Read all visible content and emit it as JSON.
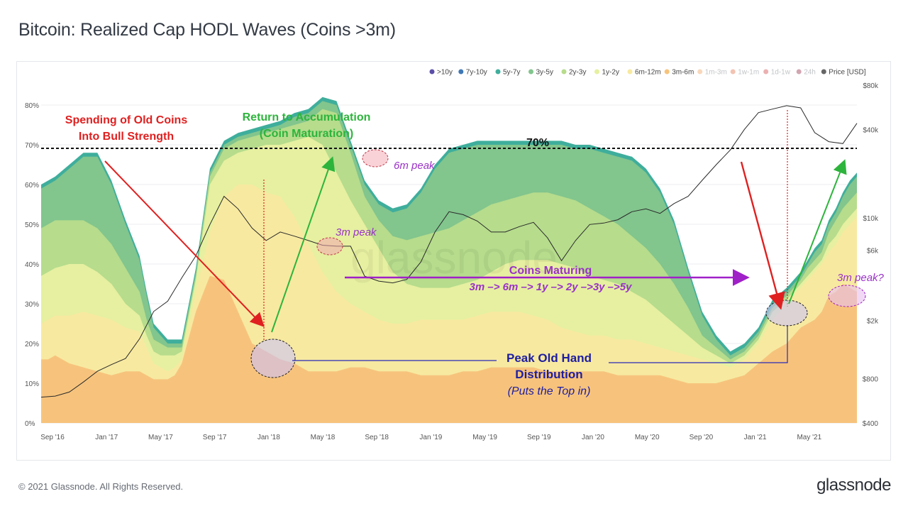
{
  "title": "Bitcoin: Realized Cap HODL Waves (Coins >3m)",
  "footer": {
    "copyright": "© 2021 Glassnode. All Rights Reserved.",
    "logo": "glassnode"
  },
  "watermark": "glassnode",
  "chart_data": {
    "type": "area",
    "title": "Bitcoin: Realized Cap HODL Waves (Coins >3m)",
    "x_ticks": [
      "Sep '16",
      "Jan '17",
      "May '17",
      "Sep '17",
      "Jan '18",
      "May '18",
      "Sep '18",
      "Jan '19",
      "May '19",
      "Sep '19",
      "Jan '20",
      "May '20",
      "Sep '20",
      "Jan '21",
      "May '21"
    ],
    "y_left_ticks": [
      "0%",
      "10%",
      "20%",
      "30%",
      "40%",
      "50%",
      "60%",
      "70%",
      "80%"
    ],
    "y_left_range": [
      0,
      85
    ],
    "y_right_ticks": [
      "$400",
      "$800",
      "$2k",
      "$6k",
      "$10k",
      "$40k",
      "$80k"
    ],
    "y_right_scale": "log",
    "y_right_range": [
      400,
      80000
    ],
    "legend_position": "top-right",
    "legend": [
      {
        "label": ">10y",
        "color": "#5b4fa8",
        "dimmed": false
      },
      {
        "label": "7y-10y",
        "color": "#3f78b5",
        "dimmed": false
      },
      {
        "label": "5y-7y",
        "color": "#3fae9c",
        "dimmed": false
      },
      {
        "label": "3y-5y",
        "color": "#82c58d",
        "dimmed": false
      },
      {
        "label": "2y-3y",
        "color": "#b6dc8c",
        "dimmed": false
      },
      {
        "label": "1y-2y",
        "color": "#e6f0a0",
        "dimmed": false
      },
      {
        "label": "6m-12m",
        "color": "#f7e9a0",
        "dimmed": false
      },
      {
        "label": "3m-6m",
        "color": "#f7c37c",
        "dimmed": false
      },
      {
        "label": "1m-3m",
        "color": "#f09a55",
        "dimmed": true
      },
      {
        "label": "1w-1m",
        "color": "#e26a3e",
        "dimmed": true
      },
      {
        "label": "1d-1w",
        "color": "#cc3b3b",
        "dimmed": true
      },
      {
        "label": "24h",
        "color": "#8c1d3c",
        "dimmed": true
      },
      {
        "label": "Price [USD]",
        "color": "#666666",
        "dimmed": false
      }
    ],
    "x": [
      0,
      0.5,
      1,
      2,
      3,
      4,
      5,
      6,
      7,
      7.5,
      8,
      8.5,
      9,
      9.5,
      10,
      11,
      12,
      13,
      14,
      15,
      16,
      17,
      18,
      19,
      20,
      21,
      22,
      23,
      24,
      25,
      26,
      27,
      28,
      29,
      30,
      31,
      32,
      33,
      34,
      35,
      36,
      37,
      38,
      39,
      40,
      41,
      42,
      43,
      44,
      45,
      46,
      47,
      48,
      49,
      50,
      51,
      52,
      53,
      54,
      54.5,
      55,
      55.5,
      56,
      56.5,
      57,
      57.5,
      58
    ],
    "series_order_bottom_to_top": [
      "3m-6m",
      "6m-12m",
      "1y-2y",
      "2y-3y",
      "3y-5y",
      "5y-7y"
    ],
    "stack_boundaries_pct": {
      "3m-6m": [
        16,
        16,
        17,
        15,
        14,
        13,
        12,
        13,
        13,
        12,
        11,
        11,
        11,
        12,
        15,
        28,
        37,
        36,
        28,
        20,
        18,
        16,
        15,
        13,
        13,
        13,
        14,
        14,
        13,
        13,
        13,
        12,
        12,
        12,
        13,
        13,
        14,
        14,
        14,
        14,
        13,
        13,
        13,
        13,
        13,
        12,
        12,
        12,
        12,
        11,
        10,
        10,
        10,
        11,
        12,
        15,
        18,
        20,
        24,
        25,
        26,
        28,
        32,
        33,
        35,
        34,
        33
      ],
      "6m-12m": [
        25,
        26,
        27,
        27,
        28,
        27,
        26,
        24,
        23,
        19,
        15,
        14,
        13,
        14,
        16,
        33,
        48,
        57,
        60,
        60,
        58,
        57,
        52,
        45,
        38,
        33,
        30,
        28,
        26,
        25,
        25,
        26,
        26,
        26,
        26,
        27,
        28,
        28,
        28,
        27,
        26,
        24,
        23,
        22,
        22,
        21,
        21,
        20,
        19,
        18,
        17,
        16,
        15,
        14,
        16,
        20,
        26,
        30,
        34,
        36,
        38,
        40,
        43,
        45,
        48,
        50,
        52
      ],
      "1y-2y": [
        37,
        38,
        39,
        40,
        40,
        38,
        35,
        30,
        27,
        22,
        18,
        17,
        17,
        17,
        18,
        36,
        60,
        66,
        68,
        69,
        70,
        70,
        71,
        72,
        70,
        63,
        56,
        50,
        44,
        38,
        35,
        34,
        34,
        34,
        35,
        36,
        38,
        40,
        41,
        41,
        41,
        40,
        39,
        37,
        36,
        35,
        33,
        31,
        28,
        25,
        22,
        19,
        17,
        15,
        17,
        21,
        28,
        31,
        35,
        37,
        39,
        41,
        45,
        47,
        50,
        52,
        54
      ],
      "2y-3y": [
        49,
        50,
        51,
        51,
        51,
        49,
        45,
        39,
        33,
        26,
        21,
        20,
        19,
        19,
        19,
        37,
        62,
        69,
        71,
        72,
        73,
        74,
        75,
        76,
        79,
        78,
        68,
        57,
        51,
        47,
        46,
        47,
        48,
        49,
        51,
        53,
        55,
        56,
        57,
        58,
        58,
        57,
        56,
        54,
        52,
        50,
        47,
        44,
        40,
        35,
        29,
        22,
        19,
        16,
        18,
        22,
        29,
        32,
        36,
        39,
        41,
        43,
        48,
        51,
        54,
        56,
        58
      ],
      "3y-5y": [
        59,
        60,
        61,
        64,
        67,
        67,
        60,
        50,
        41,
        32,
        24,
        22,
        20,
        20,
        20,
        38,
        63,
        70,
        72,
        73,
        74,
        75,
        77,
        78,
        81,
        80,
        70,
        60,
        55,
        53,
        54,
        58,
        64,
        68,
        69,
        70,
        70,
        70,
        70,
        70,
        70,
        70,
        69,
        69,
        68,
        67,
        66,
        63,
        58,
        50,
        38,
        27,
        21,
        17,
        19,
        23,
        30,
        33,
        37,
        40,
        43,
        45,
        50,
        53,
        57,
        60,
        62
      ],
      "5y-7y": [
        60,
        61,
        62,
        65,
        68,
        68,
        61,
        51,
        42,
        33,
        25,
        23,
        21,
        21,
        21,
        39,
        64,
        71,
        73,
        74,
        75,
        76,
        78,
        79,
        82,
        81,
        71,
        61,
        56,
        54,
        55,
        59,
        65,
        69,
        70,
        71,
        71,
        71,
        71,
        71,
        71,
        71,
        70,
        70,
        69,
        68,
        67,
        64,
        59,
        51,
        39,
        28,
        22,
        18,
        20,
        24,
        31,
        34,
        38,
        41,
        44,
        46,
        51,
        54,
        58,
        61,
        63
      ]
    },
    "price_x": [
      0,
      1,
      2,
      3,
      4,
      5,
      6,
      7,
      8,
      9,
      10,
      11,
      12,
      13,
      14,
      15,
      16,
      17,
      18,
      19,
      20,
      21,
      22,
      23,
      24,
      25,
      26,
      27,
      28,
      29,
      30,
      31,
      32,
      33,
      34,
      35,
      36,
      37,
      38,
      39,
      40,
      41,
      42,
      43,
      44,
      45,
      46,
      47,
      48,
      49,
      50,
      51,
      52,
      53,
      54,
      55,
      56,
      57,
      58
    ],
    "price_usd": [
      600,
      610,
      650,
      760,
      900,
      1000,
      1100,
      1500,
      2300,
      2700,
      3900,
      5500,
      9000,
      14000,
      11500,
      8500,
      7000,
      8000,
      7500,
      7000,
      6500,
      6400,
      6400,
      4000,
      3700,
      3600,
      3800,
      5000,
      8000,
      11000,
      10500,
      9500,
      8000,
      8000,
      8700,
      9300,
      7300,
      5100,
      7000,
      9000,
      9200,
      9700,
      11000,
      11500,
      10700,
      12500,
      14000,
      18000,
      23000,
      29000,
      40000,
      52000,
      55000,
      58000,
      56000,
      38000,
      33000,
      32000,
      44000
    ],
    "reference_line": {
      "value": 70,
      "label": "70%",
      "style": "dashed"
    },
    "annotations": [
      {
        "text": "Spending of Old Coins Into Bull Strength",
        "line1": "Spending of Old Coins",
        "line2": "Into Bull Strength",
        "color": "#e02020"
      },
      {
        "text": "Return to Accumulation (Coin Maturation)",
        "line1": "Return to Accumulation",
        "line2": "(Coin Maturation)",
        "color": "#2db43c"
      },
      {
        "text": "6m peak",
        "color": "#9a32c8"
      },
      {
        "text": "3m peak",
        "color": "#9a32c8"
      },
      {
        "text": "Coins Maturing",
        "color": "#9a32c8"
      },
      {
        "text": "3m –> 6m –> 1y –> 2y –>3y –>5y",
        "color": "#9a32c8"
      },
      {
        "text": "3m peak?",
        "color": "#9a32c8"
      },
      {
        "text": "Peak Old Hand",
        "color": "#1e1ea0"
      },
      {
        "text": "Distribution",
        "color": "#1e1ea0"
      },
      {
        "text": "(Puts the Top in)",
        "color": "#1e1ea0"
      }
    ]
  }
}
